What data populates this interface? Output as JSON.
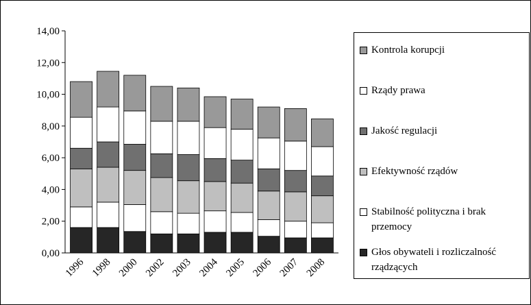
{
  "chart_data": {
    "type": "stacked_bar",
    "categories": [
      "1996",
      "1998",
      "2000",
      "2002",
      "2003",
      "2004",
      "2005",
      "2006",
      "2007",
      "2008"
    ],
    "series": [
      {
        "name": "Głos obywateli i rozliczalność rządzących",
        "color": "#262626",
        "values": [
          1.6,
          1.6,
          1.35,
          1.2,
          1.2,
          1.3,
          1.3,
          1.05,
          0.95,
          0.95
        ]
      },
      {
        "name": "Stabilność polityczna i brak przemocy",
        "color": "#ffffff",
        "values": [
          1.3,
          1.6,
          1.7,
          1.4,
          1.3,
          1.35,
          1.25,
          1.05,
          1.05,
          0.95
        ]
      },
      {
        "name": "Efektywność rządów",
        "color": "#bfbfbf",
        "values": [
          2.4,
          2.2,
          2.15,
          2.15,
          2.05,
          1.85,
          1.85,
          1.8,
          1.85,
          1.7
        ]
      },
      {
        "name": "Jakość regulacji",
        "color": "#707070",
        "values": [
          1.3,
          1.6,
          1.65,
          1.5,
          1.65,
          1.45,
          1.45,
          1.4,
          1.35,
          1.25
        ]
      },
      {
        "name": "Rządy prawa",
        "color": "#ffffff",
        "values": [
          1.95,
          2.2,
          2.1,
          2.05,
          2.1,
          1.95,
          1.95,
          1.95,
          1.85,
          1.85
        ]
      },
      {
        "name": "Kontrola korupcji",
        "color": "#999999",
        "values": [
          2.25,
          2.25,
          2.25,
          2.2,
          2.1,
          1.95,
          1.9,
          1.95,
          2.05,
          1.75
        ]
      }
    ],
    "ylim": [
      0,
      14
    ],
    "yticks": [
      {
        "value": 0,
        "label": "0,00"
      },
      {
        "value": 2,
        "label": "2,00"
      },
      {
        "value": 4,
        "label": "4,00"
      },
      {
        "value": 6,
        "label": "6,00"
      },
      {
        "value": 8,
        "label": "8,00"
      },
      {
        "value": 10,
        "label": "10,00"
      },
      {
        "value": 12,
        "label": "12,00"
      },
      {
        "value": 14,
        "label": "14,00"
      }
    ],
    "grid": false,
    "legend": "right"
  }
}
